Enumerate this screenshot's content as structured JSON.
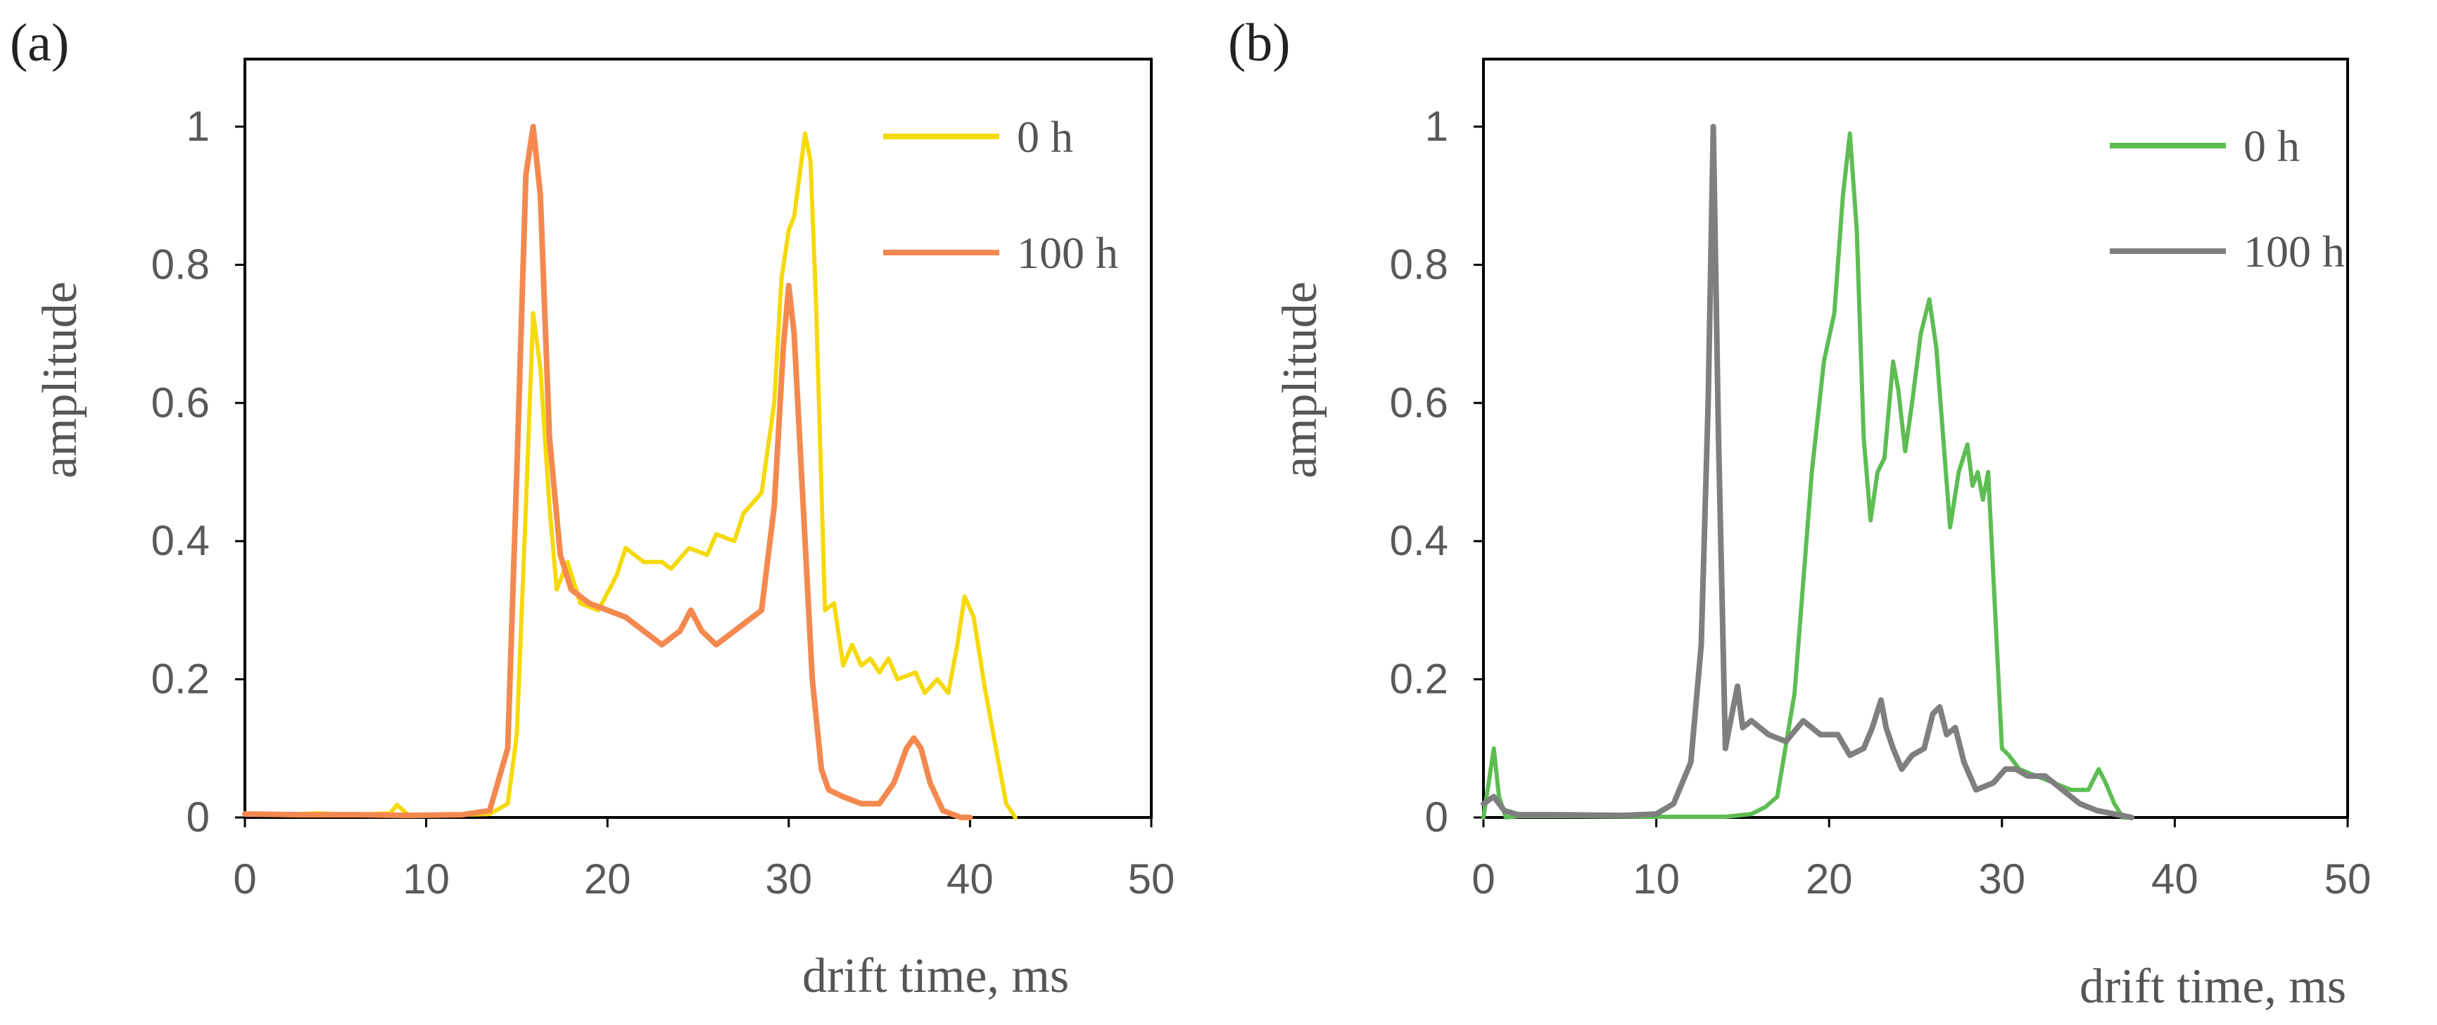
{
  "chart_data": [
    {
      "panel_label": "(a)",
      "type": "line",
      "xlabel": "drift time, ms",
      "ylabel": "amplitude",
      "xlim": [
        0,
        50
      ],
      "ylim": [
        0,
        1.1
      ],
      "xticks": [
        "0",
        "10",
        "20",
        "30",
        "40",
        "50"
      ],
      "yticks": [
        "0",
        "0.2",
        "0.4",
        "0.6",
        "0.8",
        "1"
      ],
      "legend_position": "top-right",
      "series": [
        {
          "name": "0 h",
          "color": "#F5D90A",
          "x": [
            0,
            2,
            4,
            6,
            8,
            8.4,
            9,
            10,
            12,
            13.5,
            14.5,
            15,
            15.5,
            15.9,
            16.3,
            16.8,
            17.2,
            17.8,
            18.5,
            19.5,
            20.5,
            21,
            22,
            23,
            23.5,
            24.5,
            25.5,
            26,
            27,
            27.5,
            28.5,
            29.2,
            29.6,
            30,
            30.3,
            30.6,
            30.9,
            31.2,
            31.5,
            32,
            32.5,
            33,
            33.5,
            34,
            34.5,
            35,
            35.5,
            36,
            37,
            37.5,
            38.2,
            38.8,
            39.3,
            39.7,
            40.2,
            40.8,
            41.5,
            42,
            42.5
          ],
          "y": [
            0.005,
            0.004,
            0.006,
            0.004,
            0.006,
            0.018,
            0.004,
            0.003,
            0.004,
            0.005,
            0.02,
            0.12,
            0.45,
            0.73,
            0.65,
            0.45,
            0.33,
            0.37,
            0.31,
            0.3,
            0.35,
            0.39,
            0.37,
            0.37,
            0.36,
            0.39,
            0.38,
            0.41,
            0.4,
            0.44,
            0.47,
            0.6,
            0.78,
            0.85,
            0.87,
            0.93,
            0.99,
            0.95,
            0.75,
            0.3,
            0.31,
            0.22,
            0.25,
            0.22,
            0.23,
            0.21,
            0.23,
            0.2,
            0.21,
            0.18,
            0.2,
            0.18,
            0.25,
            0.32,
            0.29,
            0.19,
            0.09,
            0.02,
            0.0
          ]
        },
        {
          "name": "100 h",
          "color": "#F4894F",
          "x": [
            0,
            3,
            6,
            9,
            12,
            13.5,
            14.5,
            15,
            15.5,
            15.9,
            16.3,
            16.8,
            17.4,
            18,
            19,
            20,
            21,
            22,
            23,
            24,
            24.6,
            25.2,
            26,
            27,
            28.5,
            29.2,
            29.7,
            30,
            30.3,
            30.8,
            31.3,
            31.8,
            32.2,
            33,
            34,
            35,
            35.8,
            36.5,
            36.9,
            37.3,
            37.8,
            38.5,
            39.5,
            40
          ],
          "y": [
            0.005,
            0.004,
            0.004,
            0.003,
            0.004,
            0.01,
            0.1,
            0.5,
            0.93,
            1.0,
            0.9,
            0.55,
            0.38,
            0.33,
            0.31,
            0.3,
            0.29,
            0.27,
            0.25,
            0.27,
            0.3,
            0.27,
            0.25,
            0.27,
            0.3,
            0.45,
            0.68,
            0.77,
            0.7,
            0.45,
            0.2,
            0.07,
            0.04,
            0.03,
            0.02,
            0.02,
            0.05,
            0.1,
            0.115,
            0.1,
            0.05,
            0.01,
            0.0,
            0.0
          ]
        }
      ]
    },
    {
      "panel_label": "(b)",
      "type": "line",
      "xlabel": "drift time, ms",
      "ylabel": "amplitude",
      "xlim": [
        0,
        50
      ],
      "ylim": [
        0,
        1.1
      ],
      "xticks": [
        "0",
        "10",
        "20",
        "30",
        "40",
        "50"
      ],
      "yticks": [
        "0",
        "0.2",
        "0.4",
        "0.6",
        "0.8",
        "1"
      ],
      "legend_position": "top-right",
      "series": [
        {
          "name": "0 h",
          "color": "#5DBD53",
          "x": [
            0,
            0.3,
            0.6,
            0.9,
            1.3,
            2,
            5,
            10,
            14,
            15.5,
            16.3,
            17,
            18,
            19,
            19.7,
            20.3,
            20.8,
            21.2,
            21.6,
            22,
            22.4,
            22.8,
            23.2,
            23.7,
            24,
            24.4,
            24.8,
            25.3,
            25.8,
            26.2,
            26.6,
            27,
            27.5,
            28,
            28.3,
            28.6,
            28.9,
            29.2,
            29.6,
            30,
            30.4,
            31,
            32,
            33,
            34,
            35,
            35.6,
            36,
            36.5,
            37,
            37.5
          ],
          "y": [
            0.0,
            0.05,
            0.1,
            0.03,
            0.0,
            0.002,
            0.002,
            0.001,
            0.001,
            0.005,
            0.015,
            0.03,
            0.18,
            0.5,
            0.66,
            0.73,
            0.9,
            0.99,
            0.85,
            0.55,
            0.43,
            0.5,
            0.52,
            0.66,
            0.62,
            0.53,
            0.6,
            0.7,
            0.75,
            0.68,
            0.55,
            0.42,
            0.5,
            0.54,
            0.48,
            0.5,
            0.46,
            0.5,
            0.3,
            0.1,
            0.09,
            0.07,
            0.06,
            0.05,
            0.04,
            0.04,
            0.07,
            0.05,
            0.02,
            0.0,
            0.0
          ]
        },
        {
          "name": "100 h",
          "color": "#7F7F7F",
          "x": [
            0,
            0.6,
            1.2,
            2,
            4,
            8,
            10,
            11,
            12,
            12.6,
            13,
            13.3,
            13.6,
            14,
            14.3,
            14.7,
            15,
            15.5,
            16.5,
            17.5,
            18.5,
            19.5,
            20.5,
            21.2,
            22,
            22.5,
            23,
            23.3,
            23.7,
            24.2,
            24.8,
            25.5,
            26,
            26.4,
            26.8,
            27.3,
            27.8,
            28.5,
            29.5,
            30.2,
            30.8,
            31.5,
            32.5,
            33.5,
            34.5,
            35.5,
            36.5,
            37.5
          ],
          "y": [
            0.02,
            0.03,
            0.01,
            0.004,
            0.004,
            0.003,
            0.005,
            0.02,
            0.08,
            0.25,
            0.6,
            1.0,
            0.55,
            0.1,
            0.14,
            0.19,
            0.13,
            0.14,
            0.12,
            0.11,
            0.14,
            0.12,
            0.12,
            0.09,
            0.1,
            0.13,
            0.17,
            0.13,
            0.1,
            0.07,
            0.09,
            0.1,
            0.15,
            0.16,
            0.12,
            0.13,
            0.08,
            0.04,
            0.05,
            0.07,
            0.07,
            0.06,
            0.06,
            0.04,
            0.02,
            0.01,
            0.005,
            0.0
          ]
        }
      ]
    }
  ]
}
